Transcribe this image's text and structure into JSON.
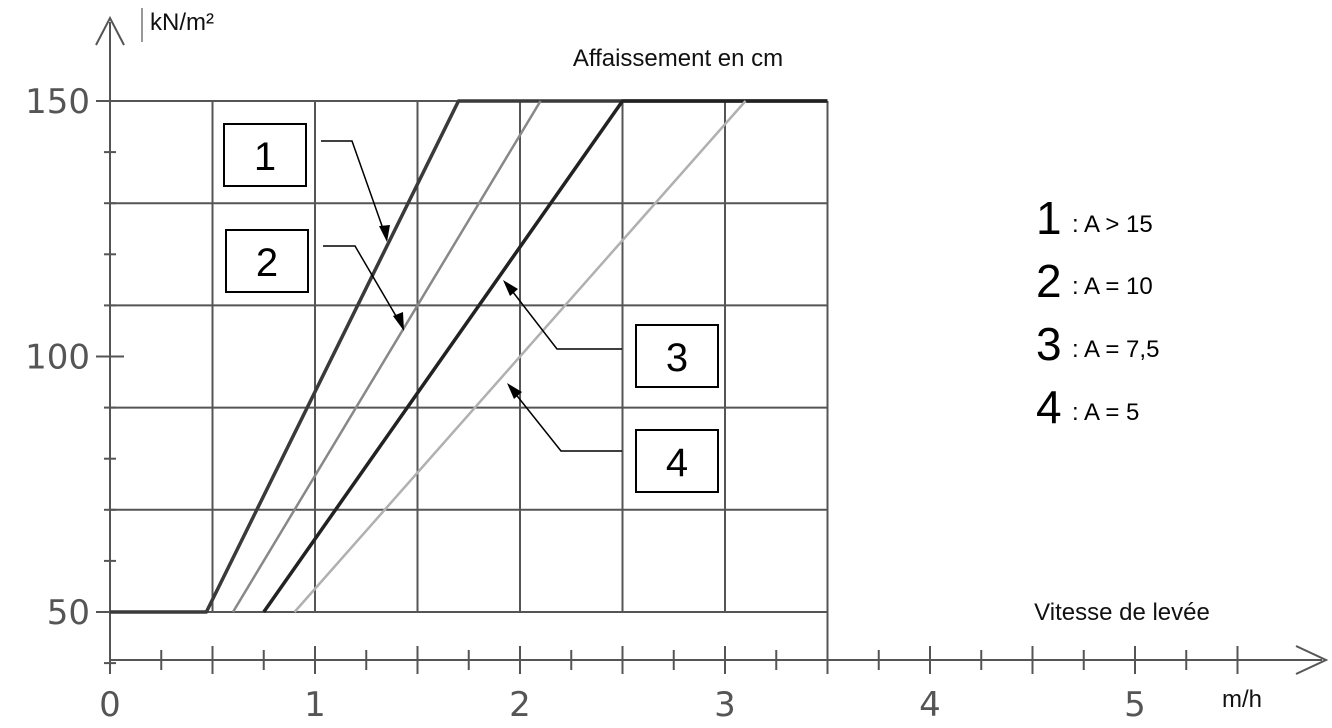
{
  "chart_data": {
    "type": "line",
    "title": "Affaissement en cm",
    "xlabel": "Vitesse de levée",
    "xunit": "m/h",
    "yunit": "kN/m²",
    "xlim": [
      0,
      5.5
    ],
    "ylim": [
      40,
      150
    ],
    "x_ticks": [
      "0",
      "1",
      "2",
      "3",
      "4",
      "5"
    ],
    "y_ticks": [
      "50",
      "100",
      "150"
    ],
    "grid": true,
    "series": [
      {
        "name": "1",
        "points": [
          [
            0,
            50
          ],
          [
            0.47,
            50
          ],
          [
            1.7,
            150
          ],
          [
            3.5,
            150
          ]
        ],
        "color": "#3a3a3a",
        "width": 3.5
      },
      {
        "name": "2",
        "points": [
          [
            0.6,
            50
          ],
          [
            2.1,
            150
          ]
        ],
        "color": "#888888",
        "width": 2.5
      },
      {
        "name": "3",
        "points": [
          [
            0.75,
            50
          ],
          [
            2.5,
            150
          ],
          [
            3.5,
            150
          ]
        ],
        "color": "#222222",
        "width": 3.5
      },
      {
        "name": "4",
        "points": [
          [
            0.9,
            50
          ],
          [
            3.1,
            150
          ]
        ],
        "color": "#b0b0b0",
        "width": 2.5
      }
    ],
    "legend": [
      {
        "num": "1",
        "desc": ": A > 15"
      },
      {
        "num": "2",
        "desc": ": A = 10"
      },
      {
        "num": "3",
        "desc": ": A = 7,5"
      },
      {
        "num": "4",
        "desc": ": A = 5"
      }
    ],
    "callouts": [
      "1",
      "2",
      "3",
      "4"
    ]
  }
}
